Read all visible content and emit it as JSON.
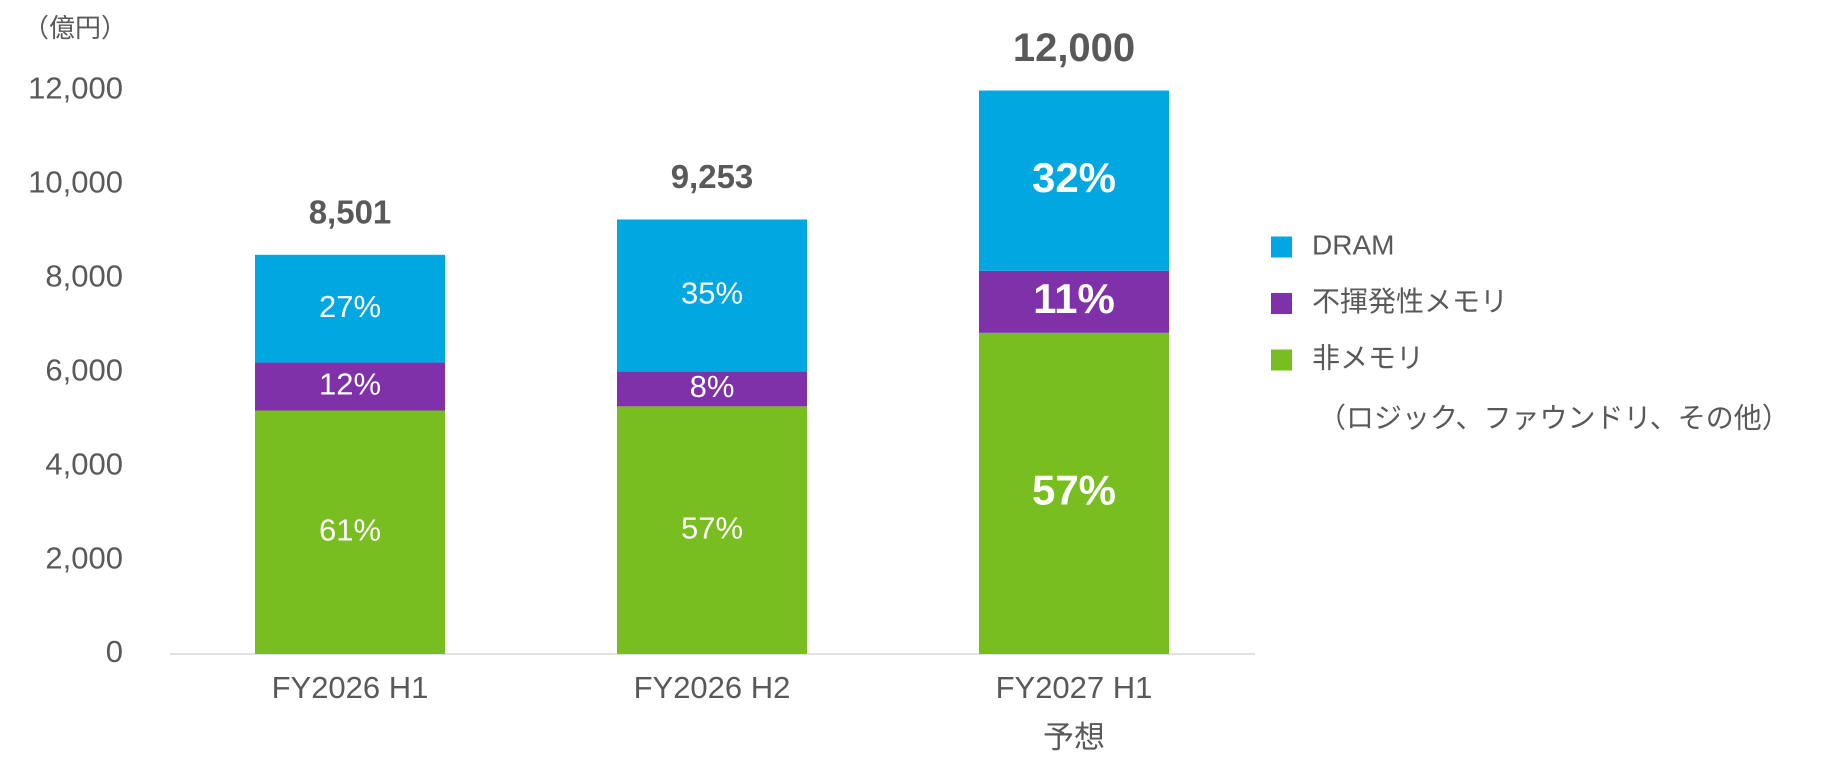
{
  "chart_data": {
    "type": "stacked_bar",
    "unit_label": "（億円）",
    "categories": [
      "FY2026 H1",
      "FY2026 H2",
      "FY2027 H1"
    ],
    "x_sublabels": [
      null,
      null,
      "予想"
    ],
    "emphasis": [
      false,
      false,
      true
    ],
    "series": [
      {
        "name": "DRAM",
        "color": "#00a7e1",
        "values": [
          2295,
          3239,
          3840
        ],
        "labels": [
          "27%",
          "35%",
          "32%"
        ]
      },
      {
        "name": "不揮発性メモリ",
        "color": "#7e31a8",
        "values": [
          1020,
          740,
          1320
        ],
        "labels": [
          "12%",
          "8%",
          "11%"
        ]
      },
      {
        "name": "非メモリ",
        "color": "#78be20",
        "values": [
          5186,
          5274,
          6840
        ],
        "labels": [
          "61%",
          "57%",
          "57%"
        ],
        "legend_note": "（ロジック、ファウンドリ、その他）"
      }
    ],
    "totals": [
      {
        "value": 8501,
        "label": "8,501"
      },
      {
        "value": 9253,
        "label": "9,253"
      },
      {
        "value": 12000,
        "label": "12,000"
      }
    ],
    "ylim": [
      0,
      12000
    ],
    "yticks": [
      0,
      {
        "value": 2000,
        "label": "2,000"
      },
      {
        "value": 4000,
        "label": "4,000"
      },
      {
        "value": 6000,
        "label": "6,000"
      },
      {
        "value": 8000,
        "label": "8,000"
      },
      {
        "value": 10000,
        "label": "10,000"
      },
      {
        "value": 12000,
        "label": "12,000"
      }
    ],
    "grid": false,
    "legend": "right"
  }
}
